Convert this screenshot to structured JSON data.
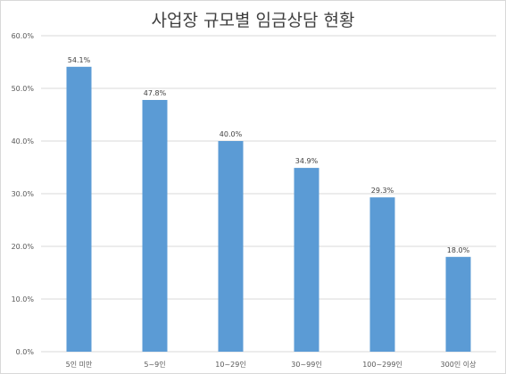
{
  "chart_data": {
    "type": "bar",
    "title": "사업장 규모별 임금상담 현황",
    "categories": [
      "5인 미만",
      "5~9인",
      "10~29인",
      "30~99인",
      "100~299인",
      "300인 이상"
    ],
    "values": [
      54.1,
      47.8,
      40.0,
      34.9,
      29.3,
      18.0
    ],
    "data_labels": [
      "54.1%",
      "47.8%",
      "40.0%",
      "34.9%",
      "29.3%",
      "18.0%"
    ],
    "y_ticks": [
      "0.0%",
      "10.0%",
      "20.0%",
      "30.0%",
      "40.0%",
      "50.0%",
      "60.0%"
    ],
    "ylim": [
      0,
      60
    ],
    "y_tick_step": 10,
    "xlabel": "",
    "ylabel": "",
    "grid": true,
    "legend": "none",
    "bar_color": "#5b9bd5",
    "grid_color": "#d9d9d9"
  }
}
